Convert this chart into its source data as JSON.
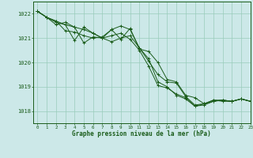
{
  "title": "Graphe pression niveau de la mer (hPa)",
  "background_color": "#cce8e8",
  "grid_color": "#99ccbb",
  "line_color": "#1a5c1a",
  "xlim": [
    -0.5,
    23
  ],
  "ylim": [
    1017.5,
    1022.5
  ],
  "yticks": [
    1018,
    1019,
    1020,
    1021,
    1022
  ],
  "xticks": [
    0,
    1,
    2,
    3,
    4,
    5,
    6,
    7,
    8,
    9,
    10,
    11,
    12,
    13,
    14,
    15,
    16,
    17,
    18,
    19,
    20,
    21,
    22,
    23
  ],
  "series": [
    [
      1022.1,
      1021.85,
      1021.7,
      1021.55,
      1021.45,
      1021.35,
      1021.2,
      1021.0,
      1021.35,
      1021.5,
      1021.35,
      1020.6,
      1020.05,
      1019.5,
      1019.2,
      1019.15,
      1018.6,
      1018.25,
      1018.3,
      1018.4,
      1018.45,
      1018.4,
      1018.5,
      1018.4
    ],
    [
      1022.1,
      1021.85,
      1021.65,
      1021.55,
      1020.9,
      1021.45,
      1021.2,
      1021.0,
      1020.85,
      1021.0,
      1021.1,
      1020.6,
      1020.15,
      1019.2,
      1019.0,
      1018.65,
      1018.5,
      1018.2,
      1018.25,
      1018.4,
      1018.45,
      1018.4,
      1018.5,
      1018.4
    ],
    [
      1022.1,
      1021.85,
      1021.55,
      1021.65,
      1021.45,
      1020.8,
      1021.05,
      1021.0,
      1021.1,
      1021.2,
      1020.95,
      1020.5,
      1019.85,
      1019.05,
      1018.95,
      1018.7,
      1018.55,
      1018.2,
      1018.3,
      1018.45,
      1018.4,
      1018.4,
      1018.5,
      1018.4
    ],
    [
      1022.1,
      1021.85,
      1021.7,
      1021.3,
      1021.25,
      1021.1,
      1021.0,
      1021.05,
      1021.35,
      1020.95,
      1021.4,
      1020.55,
      1020.45,
      1020.0,
      1019.3,
      1019.2,
      1018.65,
      1018.55,
      1018.3,
      1018.45,
      1018.45,
      1018.4,
      1018.5,
      1018.4
    ]
  ]
}
